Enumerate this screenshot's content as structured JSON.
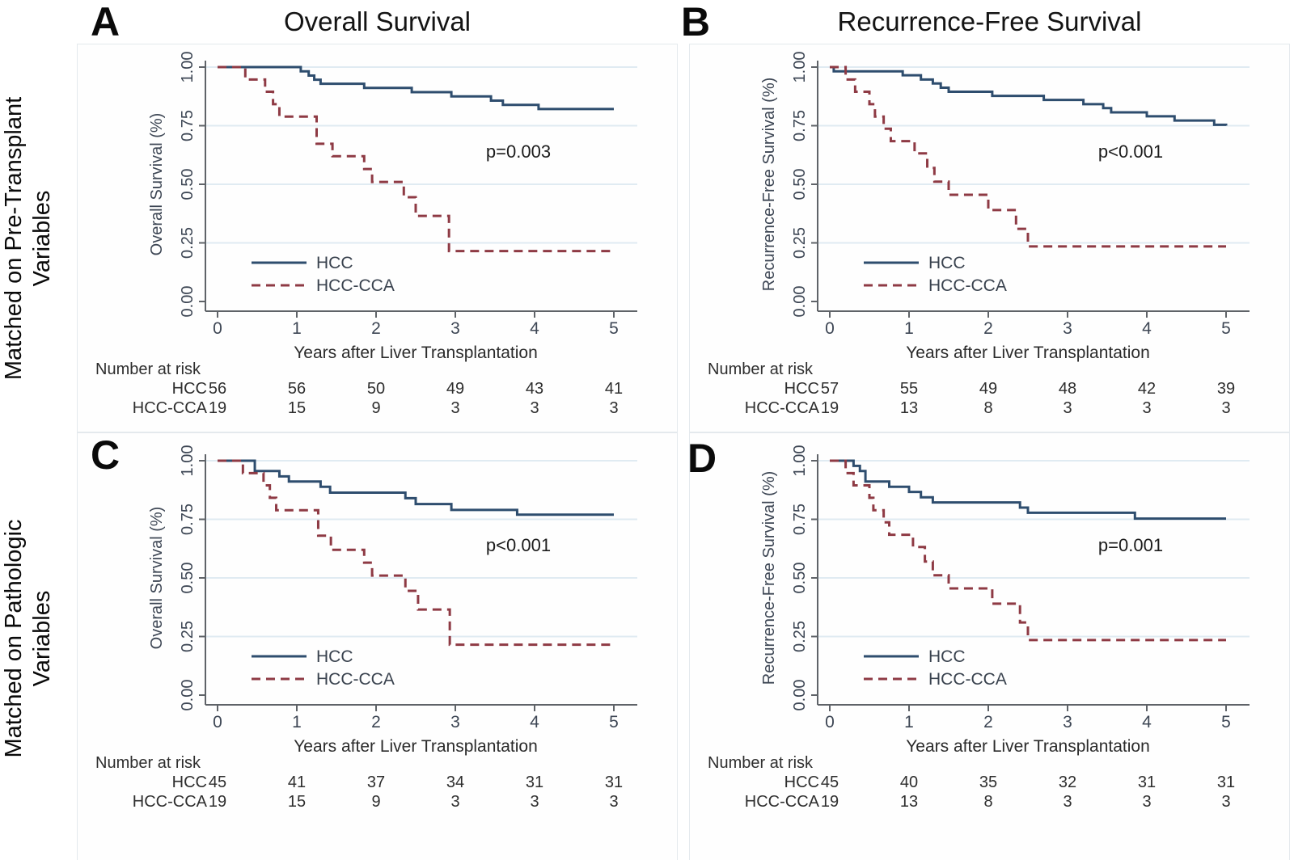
{
  "figure": {
    "column_titles": [
      "Overall Survival",
      "Recurrence-Free Survival"
    ],
    "row_labels": [
      {
        "line1": "Matched on Pre-Transplant",
        "line2": "Variables"
      },
      {
        "line1": "Matched on Pathologic",
        "line2": "Variables"
      }
    ]
  },
  "colors": {
    "hcc_line": "#2e4d6e",
    "hcc_cca_line": "#8e3a44",
    "gridline": "#e0ebf2",
    "axis_line": "#5f6368",
    "tick_label": "#3d4654",
    "risk_text": "#2e2e2e",
    "p_value_text": "#1c1c1c",
    "legend_text": "#39424e",
    "panel_border": "#e4e9ed"
  },
  "chart_data": [
    {
      "panel_letter": "A",
      "type": "line",
      "title": "Overall Survival",
      "row_group": "Matched on Pre-Transplant Variables",
      "ylabel": "Overall Survival (%)",
      "xlabel": "Years after Liver Transplantation",
      "p_value": "p=0.003",
      "xlim": [
        0,
        5
      ],
      "ylim": [
        0,
        1
      ],
      "x_ticks": [
        "0",
        "1",
        "2",
        "3",
        "4",
        "5"
      ],
      "y_ticks": [
        "0.00",
        "0.25",
        "0.50",
        "0.75",
        "1.00"
      ],
      "grid": true,
      "legend_position": "bottom-left-inside",
      "series": [
        {
          "name": "HCC",
          "style": "solid",
          "points": [
            [
              0,
              1
            ],
            [
              1.05,
              0.982
            ],
            [
              1.15,
              0.964
            ],
            [
              1.22,
              0.946
            ],
            [
              1.3,
              0.929
            ],
            [
              1.85,
              0.911
            ],
            [
              2.45,
              0.893
            ],
            [
              2.95,
              0.875
            ],
            [
              3.45,
              0.857
            ],
            [
              3.6,
              0.839
            ],
            [
              4.05,
              0.821
            ],
            [
              5,
              0.821
            ]
          ]
        },
        {
          "name": "HCC-CCA",
          "style": "dashed",
          "points": [
            [
              0,
              1
            ],
            [
              0.35,
              0.947
            ],
            [
              0.6,
              0.895
            ],
            [
              0.7,
              0.842
            ],
            [
              0.78,
              0.789
            ],
            [
              1.25,
              0.673
            ],
            [
              1.45,
              0.62
            ],
            [
              1.85,
              0.565
            ],
            [
              1.95,
              0.51
            ],
            [
              2.35,
              0.445
            ],
            [
              2.5,
              0.365
            ],
            [
              2.92,
              0.215
            ],
            [
              5,
              0.215
            ]
          ]
        }
      ],
      "number_at_risk": {
        "header": "Number at risk",
        "rows": [
          {
            "label": "HCC",
            "values": [
              "56",
              "56",
              "50",
              "49",
              "43",
              "41"
            ]
          },
          {
            "label": "HCC-CCA",
            "values": [
              "19",
              "15",
              "9",
              "3",
              "3",
              "3"
            ]
          }
        ]
      }
    },
    {
      "panel_letter": "B",
      "type": "line",
      "title": "Recurrence-Free Survival",
      "row_group": "Matched on Pre-Transplant Variables",
      "ylabel": "Recurrence-Free Survival (%)",
      "xlabel": "Years after Liver Transplantation",
      "p_value": "p<0.001",
      "xlim": [
        0,
        5
      ],
      "ylim": [
        0,
        1
      ],
      "x_ticks": [
        "0",
        "1",
        "2",
        "3",
        "4",
        "5"
      ],
      "y_ticks": [
        "0.00",
        "0.25",
        "0.50",
        "0.75",
        "1.00"
      ],
      "grid": true,
      "legend_position": "bottom-left-inside",
      "series": [
        {
          "name": "HCC",
          "style": "solid",
          "points": [
            [
              0,
              1
            ],
            [
              0.05,
              0.982
            ],
            [
              0.92,
              0.965
            ],
            [
              1.15,
              0.947
            ],
            [
              1.3,
              0.93
            ],
            [
              1.4,
              0.912
            ],
            [
              1.5,
              0.895
            ],
            [
              2.05,
              0.877
            ],
            [
              2.7,
              0.86
            ],
            [
              3.2,
              0.842
            ],
            [
              3.45,
              0.825
            ],
            [
              3.55,
              0.807
            ],
            [
              4,
              0.79
            ],
            [
              4.35,
              0.772
            ],
            [
              4.85,
              0.754
            ],
            [
              5,
              0.75
            ]
          ]
        },
        {
          "name": "HCC-CCA",
          "style": "dashed",
          "points": [
            [
              0,
              1
            ],
            [
              0.2,
              0.947
            ],
            [
              0.32,
              0.895
            ],
            [
              0.5,
              0.842
            ],
            [
              0.57,
              0.789
            ],
            [
              0.68,
              0.737
            ],
            [
              0.77,
              0.684
            ],
            [
              1.07,
              0.632
            ],
            [
              1.23,
              0.57
            ],
            [
              1.32,
              0.511
            ],
            [
              1.5,
              0.455
            ],
            [
              2,
              0.39
            ],
            [
              2.35,
              0.31
            ],
            [
              2.5,
              0.235
            ],
            [
              5,
              0.235
            ]
          ]
        }
      ],
      "number_at_risk": {
        "header": "Number at risk",
        "rows": [
          {
            "label": "HCC",
            "values": [
              "57",
              "55",
              "49",
              "48",
              "42",
              "39"
            ]
          },
          {
            "label": "HCC-CCA",
            "values": [
              "19",
              "13",
              "8",
              "3",
              "3",
              "3"
            ]
          }
        ]
      }
    },
    {
      "panel_letter": "C",
      "type": "line",
      "title": "Overall Survival",
      "row_group": "Matched on Pathologic Variables",
      "ylabel": "Overall Survival (%)",
      "xlabel": "Years after Liver Transplantation",
      "p_value": "p<0.001",
      "xlim": [
        0,
        5
      ],
      "ylim": [
        0,
        1
      ],
      "x_ticks": [
        "0",
        "1",
        "2",
        "3",
        "4",
        "5"
      ],
      "y_ticks": [
        "0.00",
        "0.25",
        "0.50",
        "0.75",
        "1.00"
      ],
      "grid": true,
      "legend_position": "bottom-left-inside",
      "series": [
        {
          "name": "HCC",
          "style": "solid",
          "points": [
            [
              0,
              1
            ],
            [
              0.47,
              0.956
            ],
            [
              0.78,
              0.933
            ],
            [
              0.9,
              0.911
            ],
            [
              1.3,
              0.889
            ],
            [
              1.42,
              0.864
            ],
            [
              2.37,
              0.84
            ],
            [
              2.5,
              0.815
            ],
            [
              2.95,
              0.79
            ],
            [
              3.78,
              0.77
            ],
            [
              5,
              0.77
            ]
          ]
        },
        {
          "name": "HCC-CCA",
          "style": "dashed",
          "points": [
            [
              0,
              1
            ],
            [
              0.32,
              0.947
            ],
            [
              0.58,
              0.895
            ],
            [
              0.66,
              0.842
            ],
            [
              0.74,
              0.789
            ],
            [
              1.27,
              0.68
            ],
            [
              1.43,
              0.62
            ],
            [
              1.85,
              0.565
            ],
            [
              1.95,
              0.51
            ],
            [
              2.37,
              0.445
            ],
            [
              2.53,
              0.365
            ],
            [
              2.93,
              0.215
            ],
            [
              5,
              0.215
            ]
          ]
        }
      ],
      "number_at_risk": {
        "header": "Number at risk",
        "rows": [
          {
            "label": "HCC",
            "values": [
              "45",
              "41",
              "37",
              "34",
              "31",
              "31"
            ]
          },
          {
            "label": "HCC-CCA",
            "values": [
              "19",
              "15",
              "9",
              "3",
              "3",
              "3"
            ]
          }
        ]
      }
    },
    {
      "panel_letter": "D",
      "type": "line",
      "title": "Recurrence-Free Survival",
      "row_group": "Matched on Pathologic Variables",
      "ylabel": "Recurrence-Free Survival (%)",
      "xlabel": "Years after Liver Transplantation",
      "p_value": "p=0.001",
      "xlim": [
        0,
        5
      ],
      "ylim": [
        0,
        1
      ],
      "x_ticks": [
        "0",
        "1",
        "2",
        "3",
        "4",
        "5"
      ],
      "y_ticks": [
        "0.00",
        "0.25",
        "0.50",
        "0.75",
        "1.00"
      ],
      "grid": true,
      "legend_position": "bottom-left-inside",
      "series": [
        {
          "name": "HCC",
          "style": "solid",
          "points": [
            [
              0,
              1
            ],
            [
              0.3,
              0.978
            ],
            [
              0.38,
              0.956
            ],
            [
              0.45,
              0.911
            ],
            [
              0.75,
              0.889
            ],
            [
              1,
              0.867
            ],
            [
              1.15,
              0.844
            ],
            [
              1.3,
              0.822
            ],
            [
              2.4,
              0.8
            ],
            [
              2.5,
              0.778
            ],
            [
              3.85,
              0.753
            ],
            [
              5,
              0.753
            ]
          ]
        },
        {
          "name": "HCC-CCA",
          "style": "dashed",
          "points": [
            [
              0,
              1
            ],
            [
              0.2,
              0.947
            ],
            [
              0.3,
              0.895
            ],
            [
              0.5,
              0.842
            ],
            [
              0.55,
              0.789
            ],
            [
              0.68,
              0.737
            ],
            [
              0.75,
              0.684
            ],
            [
              1.05,
              0.632
            ],
            [
              1.2,
              0.57
            ],
            [
              1.3,
              0.511
            ],
            [
              1.5,
              0.455
            ],
            [
              2.05,
              0.39
            ],
            [
              2.4,
              0.31
            ],
            [
              2.5,
              0.235
            ],
            [
              5,
              0.235
            ]
          ]
        }
      ],
      "number_at_risk": {
        "header": "Number at risk",
        "rows": [
          {
            "label": "HCC",
            "values": [
              "45",
              "40",
              "35",
              "32",
              "31",
              "31"
            ]
          },
          {
            "label": "HCC-CCA",
            "values": [
              "19",
              "13",
              "8",
              "3",
              "3",
              "3"
            ]
          }
        ]
      }
    }
  ]
}
